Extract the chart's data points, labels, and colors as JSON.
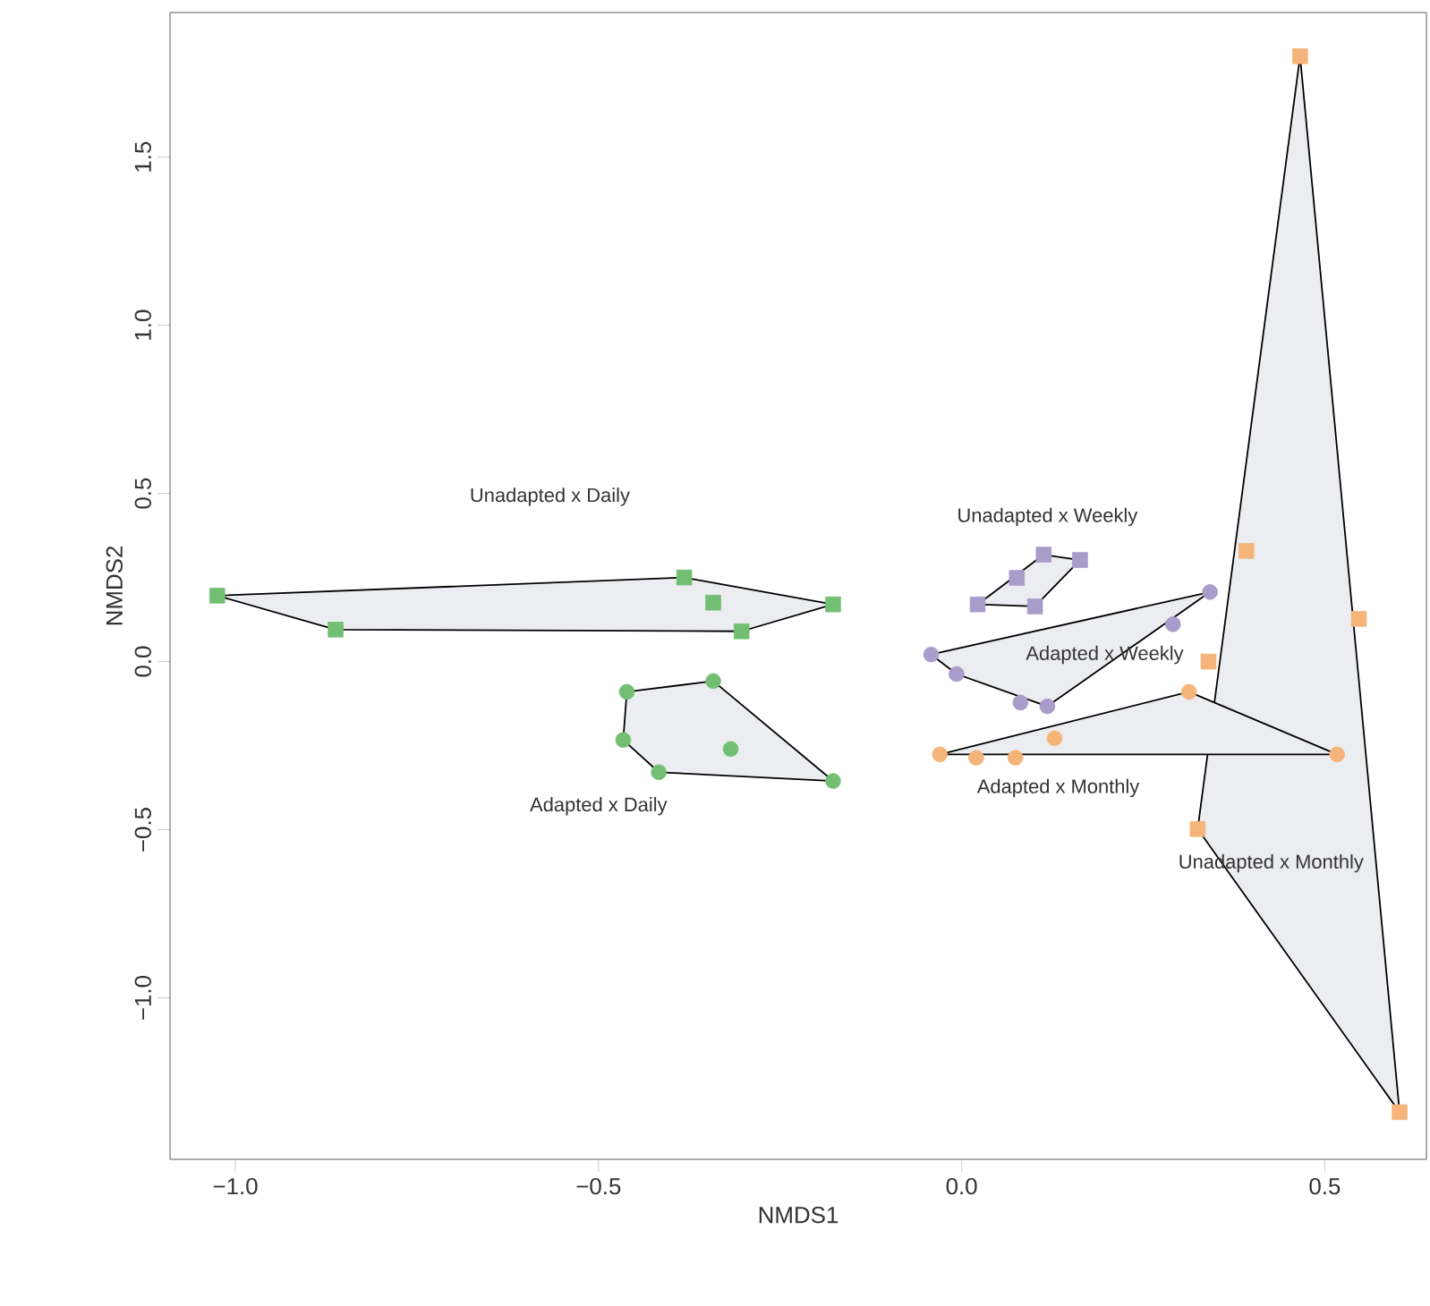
{
  "chart_data": {
    "type": "scatter",
    "xlabel": "NMDS1",
    "ylabel": "NMDS2",
    "xlim": [
      -1.09,
      0.64
    ],
    "ylim": [
      -1.48,
      1.93
    ],
    "xticks": [
      {
        "value": -1.0,
        "label": "−1.0"
      },
      {
        "value": -0.5,
        "label": "−0.5"
      },
      {
        "value": 0.0,
        "label": "0.0"
      },
      {
        "value": 0.5,
        "label": "0.5"
      }
    ],
    "yticks": [
      {
        "value": -1.0,
        "label": "−1.0"
      },
      {
        "value": -0.5,
        "label": "−0.5"
      },
      {
        "value": 0.0,
        "label": "0.0"
      },
      {
        "value": 0.5,
        "label": "0.5"
      },
      {
        "value": 1.0,
        "label": "1.0"
      },
      {
        "value": 1.5,
        "label": "1.5"
      }
    ],
    "grid": false,
    "series": [
      {
        "type": "area",
        "color": "#000000",
        "x": [
          0.466,
          0.603,
          0.325,
          0.466
        ],
        "values": [
          1.8,
          -1.34,
          -0.498,
          1.8
        ]
      },
      {
        "type": "area",
        "color": "#000000",
        "x": [
          -1.025,
          -0.382,
          -0.177,
          -0.303,
          -0.862,
          -1.025
        ],
        "values": [
          0.196,
          0.25,
          0.17,
          0.09,
          0.095,
          0.196
        ]
      },
      {
        "type": "area",
        "color": "#000000",
        "x": [
          -0.461,
          -0.342,
          -0.177,
          -0.417,
          -0.466,
          -0.461
        ],
        "values": [
          -0.09,
          -0.058,
          -0.355,
          -0.329,
          -0.233,
          -0.09
        ]
      },
      {
        "type": "area",
        "color": "#000000",
        "x": [
          0.022,
          0.113,
          0.163,
          0.101,
          0.022
        ],
        "values": [
          0.17,
          0.318,
          0.302,
          0.164,
          0.17
        ]
      },
      {
        "type": "area",
        "color": "#000000",
        "x": [
          -0.042,
          0.342,
          0.118,
          -0.007,
          -0.042
        ],
        "values": [
          0.021,
          0.207,
          -0.133,
          -0.037,
          0.021
        ]
      },
      {
        "type": "area",
        "color": "#000000",
        "x": [
          -0.03,
          0.313,
          0.517,
          -0.03
        ],
        "values": [
          -0.276,
          -0.09,
          -0.276,
          -0.276
        ]
      },
      {
        "type": "scatter",
        "marker": "square",
        "color": "#72bf74",
        "x": [
          -1.025,
          -0.862,
          -0.382,
          -0.342,
          -0.303,
          -0.177
        ],
        "values": [
          0.196,
          0.095,
          0.25,
          0.175,
          0.09,
          0.17
        ]
      },
      {
        "type": "scatter",
        "marker": "circle",
        "color": "#72bf74",
        "x": [
          -0.461,
          -0.342,
          -0.466,
          -0.417,
          -0.318,
          -0.177
        ],
        "values": [
          -0.09,
          -0.058,
          -0.233,
          -0.329,
          -0.26,
          -0.355
        ]
      },
      {
        "type": "scatter",
        "marker": "square",
        "color": "#a99ccb",
        "x": [
          0.113,
          0.163,
          0.076,
          0.022,
          0.101
        ],
        "values": [
          0.318,
          0.302,
          0.249,
          0.17,
          0.164
        ]
      },
      {
        "type": "scatter",
        "marker": "circle",
        "color": "#a99ccb",
        "x": [
          0.342,
          0.291,
          -0.042,
          -0.007,
          0.081,
          0.118
        ],
        "values": [
          0.207,
          0.111,
          0.021,
          -0.037,
          -0.122,
          -0.133
        ]
      },
      {
        "type": "scatter",
        "marker": "circle",
        "color": "#f5b57a",
        "x": [
          -0.03,
          0.02,
          0.074,
          0.128,
          0.313,
          0.517
        ],
        "values": [
          -0.276,
          -0.286,
          -0.286,
          -0.228,
          -0.09,
          -0.276
        ]
      },
      {
        "type": "scatter",
        "marker": "square",
        "color": "#f5b57a",
        "x": [
          0.392,
          0.547,
          0.34,
          0.466,
          0.325,
          0.603
        ],
        "values": [
          0.329,
          0.127,
          0.0,
          1.8,
          -0.498,
          -1.34
        ]
      }
    ],
    "annotations": [
      "Unadapted x Daily",
      "Adapted x Daily",
      "Unadapted x Weekly",
      "Adapted x Weekly",
      "Adapted x Monthly",
      "Unadapted x Monthly"
    ]
  }
}
